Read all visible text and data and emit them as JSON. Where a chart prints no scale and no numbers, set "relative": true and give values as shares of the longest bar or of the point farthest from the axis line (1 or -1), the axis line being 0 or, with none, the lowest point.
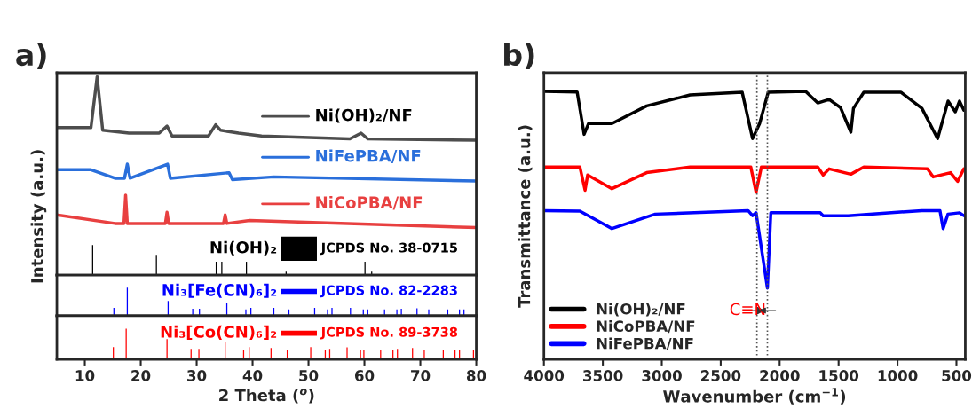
{
  "chart_data": [
    {
      "type": "line",
      "title": "a)",
      "ylabel": "Intensity (a.u.)",
      "relative": true,
      "xlim": [
        5,
        80
      ],
      "xticks": [
        10,
        20,
        30,
        40,
        50,
        60,
        70,
        80
      ],
      "tick_labels": false,
      "legend": "right",
      "series": [
        {
          "name": "Ni(OH)₂/NF",
          "color": "#4d4d4d",
          "x": [
            5,
            7.9,
            11.1,
            12.2,
            13.2,
            17.9,
            23.3,
            24.7,
            25.6,
            32.1,
            33.4,
            34.3,
            37.5,
            41.6,
            57.4,
            59.4,
            60.6,
            80
          ],
          "values": [
            0.744,
            0.744,
            0.744,
            1.0,
            0.73,
            0.716,
            0.716,
            0.751,
            0.701,
            0.701,
            0.758,
            0.73,
            0.716,
            0.701,
            0.687,
            0.716,
            0.687,
            0.68
          ]
        },
        {
          "name": "NiFePBA/NF",
          "color": "#2a6fdb",
          "x": [
            5,
            11.1,
            15.4,
            17.1,
            17.6,
            18.1,
            24.8,
            25.3,
            35.8,
            36.4,
            43.8,
            80
          ],
          "values": [
            0.531,
            0.531,
            0.488,
            0.488,
            0.559,
            0.488,
            0.559,
            0.488,
            0.516,
            0.481,
            0.495,
            0.474
          ]
        },
        {
          "name": "NiCoPBA/NF",
          "color": "#e84040",
          "x": [
            5,
            15.4,
            17.0,
            17.3,
            17.6,
            24.4,
            24.7,
            25.0,
            34.8,
            35.1,
            35.4,
            39.5,
            80
          ],
          "values": [
            0.303,
            0.26,
            0.26,
            0.403,
            0.26,
            0.26,
            0.317,
            0.26,
            0.26,
            0.303,
            0.26,
            0.275,
            0.239
          ]
        },
        {
          "name": "Ni(OH)₂",
          "type": "bar",
          "color": "#000000",
          "x": [
            11.4,
            22.8,
            33.5,
            34.5,
            38.9,
            46.0,
            60.1,
            61.3
          ],
          "values": [
            0.151,
            0.102,
            0.067,
            0.067,
            0.067,
            0.017,
            0.067,
            0.017
          ]
        }
      ],
      "annotations": [
        "JCPDS No. 38-0715"
      ]
    },
    {
      "type": "bar",
      "relative": true,
      "xlim": [
        5,
        80
      ],
      "xticks": [
        10,
        20,
        30,
        40,
        50,
        60,
        70,
        80
      ],
      "tick_labels": false,
      "series": [
        {
          "name": "Ni₃[Fe(CN)₆]₂",
          "color": "#0000ff",
          "x": [
            15.2,
            17.6,
            24.9,
            29.3,
            30.5,
            35.4,
            38.8,
            39.7,
            43.8,
            46.5,
            51.1,
            53.4,
            54.2,
            57.5,
            59.8,
            60.6,
            63.6,
            65.8,
            66.6,
            69.4,
            71.5,
            74.9,
            77.0,
            77.8
          ],
          "values": [
            0.28,
            1,
            0.53,
            0.25,
            0.25,
            0.47,
            0.23,
            0.28,
            0.28,
            0.23,
            0.28,
            0.23,
            0.28,
            0.28,
            0.23,
            0.23,
            0.23,
            0.23,
            0.25,
            0.27,
            0.23,
            0.23,
            0.23,
            0.23
          ]
        }
      ],
      "annotations": [
        "JCPDS No. 82-2283"
      ]
    },
    {
      "type": "bar",
      "relative": true,
      "xlabel": "2 Theta ($^{o}$)",
      "xlim": [
        5,
        80
      ],
      "xticks": [
        10,
        20,
        30,
        40,
        50,
        60,
        70,
        80
      ],
      "series": [
        {
          "name": "Ni₃[Co(CN)₆]₂",
          "color": "#ff0000",
          "x": [
            15.1,
            17.4,
            24.7,
            29.0,
            30.4,
            35.1,
            38.4,
            39.4,
            43.3,
            46.2,
            50.4,
            53.0,
            53.8,
            56.9,
            59.3,
            59.9,
            62.9,
            65.1,
            65.9,
            68.6,
            70.7,
            74.1,
            76.2,
            77.0,
            79.5
          ],
          "values": [
            0.4,
            1,
            0.66,
            0.34,
            0.34,
            0.57,
            0.31,
            0.4,
            0.37,
            0.31,
            0.4,
            0.31,
            0.34,
            0.39,
            0.31,
            0.31,
            0.31,
            0.31,
            0.34,
            0.37,
            0.31,
            0.31,
            0.31,
            0.31,
            0.31
          ]
        }
      ],
      "annotations": [
        "JCPDS No. 89-3738"
      ]
    },
    {
      "type": "line",
      "title": "b)",
      "xlabel": "Wavenumber (cm$^{−1}$)",
      "ylabel": "Transmittance (a.u.)",
      "relative": true,
      "xlim": [
        4000,
        425
      ],
      "xticks": [
        4000,
        3500,
        3000,
        2500,
        2000,
        1500,
        1000,
        500
      ],
      "legend": "bottom left",
      "series": [
        {
          "name": "Ni(OH)₂/NF",
          "color": "#000000",
          "x": [
            4000,
            3718,
            3659,
            3622,
            3423,
            3128,
            2760,
            2318,
            2230,
            2170,
            2097,
            1780,
            1677,
            1580,
            1484,
            1396,
            1374,
            1286,
            970,
            793,
            660,
            571,
            510,
            474,
            437
          ],
          "values": [
            1,
            0.998,
            0.84,
            0.88,
            0.88,
            0.946,
            0.987,
            0.997,
            0.824,
            0.88,
            0.997,
            1,
            0.957,
            0.97,
            0.94,
            0.848,
            0.937,
            0.997,
            0.997,
            0.937,
            0.824,
            0.964,
            0.924,
            0.964,
            0.93
          ]
        },
        {
          "name": "NiCoPBA/NF",
          "color": "#ff0000",
          "x": [
            4000,
            3695,
            3651,
            3629,
            3423,
            3128,
            2760,
            2245,
            2200,
            2155,
            1677,
            1631,
            1580,
            1396,
            1286,
            746,
            697,
            550,
            490,
            437
          ],
          "values": [
            0.718,
            0.718,
            0.631,
            0.688,
            0.637,
            0.697,
            0.718,
            0.718,
            0.624,
            0.718,
            0.718,
            0.688,
            0.711,
            0.691,
            0.718,
            0.711,
            0.681,
            0.697,
            0.664,
            0.711
          ]
        },
        {
          "name": "NiFePBA/NF",
          "color": "#0000ff",
          "x": [
            4000,
            3695,
            3423,
            3055,
            2268,
            2230,
            2200,
            2104,
            2075,
            1655,
            1631,
            1418,
            793,
            640,
            613,
            572,
            474,
            437
          ],
          "values": [
            0.555,
            0.553,
            0.488,
            0.542,
            0.555,
            0.536,
            0.547,
            0.266,
            0.547,
            0.547,
            0.536,
            0.536,
            0.555,
            0.555,
            0.488,
            0.542,
            0.547,
            0.536
          ]
        }
      ],
      "ref_lines": [
        {
          "axis": "x",
          "value": 2193,
          "color": "#555555",
          "line_style": "dotted"
        },
        {
          "axis": "x",
          "value": 2104,
          "color": "#555555",
          "line_style": "dotted"
        }
      ],
      "annotations": [
        {
          "text": "C≡N",
          "x": 2104,
          "y": 0.182
        }
      ]
    }
  ]
}
